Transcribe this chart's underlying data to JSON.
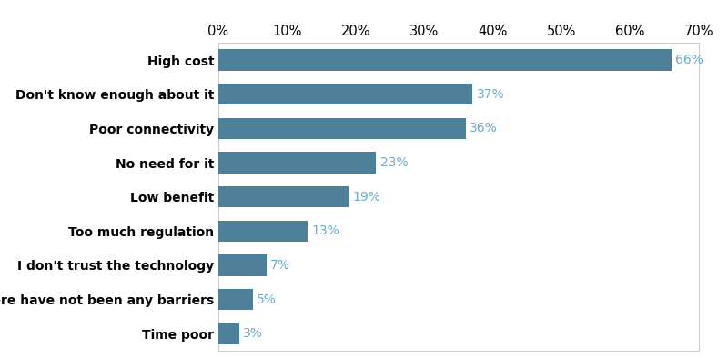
{
  "categories": [
    "Time poor",
    "There have not been any barriers",
    "I don't trust the technology",
    "Too much regulation",
    "Low benefit",
    "No need for it",
    "Poor connectivity",
    "Don't know enough about it",
    "High cost"
  ],
  "values": [
    3,
    5,
    7,
    13,
    19,
    23,
    36,
    37,
    66
  ],
  "bar_color": "#4d7f99",
  "label_color": "#6aaccc",
  "label_fontsize": 10,
  "category_fontsize": 10,
  "tick_fontsize": 10.5,
  "xlim": [
    0,
    70
  ],
  "xticks": [
    0,
    10,
    20,
    30,
    40,
    50,
    60,
    70
  ],
  "background_color": "#ffffff",
  "bar_height": 0.62,
  "figsize": [
    8.0,
    3.94
  ],
  "dpi": 100
}
